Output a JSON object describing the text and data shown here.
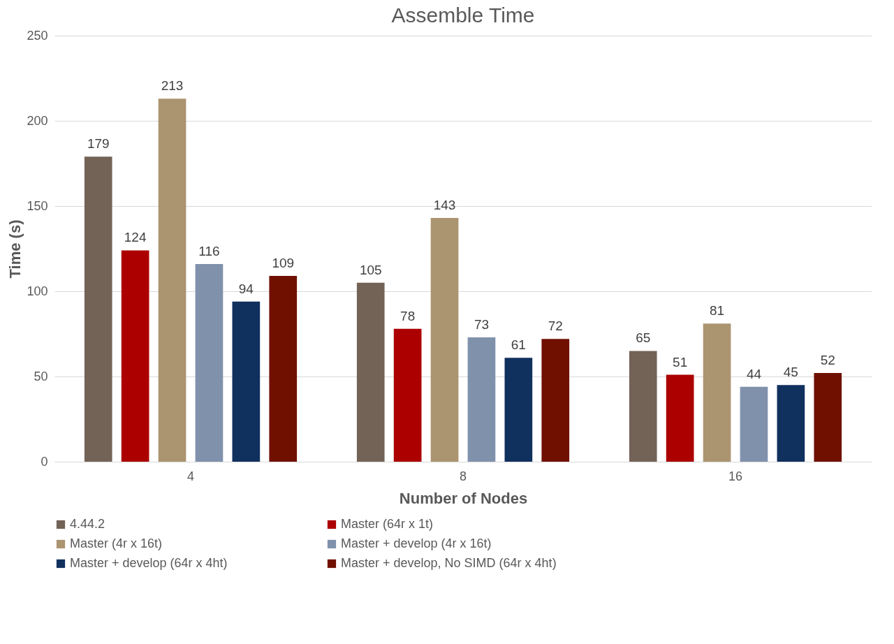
{
  "chart_data": {
    "type": "bar",
    "title": "Assemble Time",
    "xlabel": "Number of Nodes",
    "ylabel": "Time (s)",
    "categories": [
      "4",
      "8",
      "16"
    ],
    "series": [
      {
        "name": "4.44.2",
        "color": "#736357",
        "values": [
          179,
          105,
          65
        ]
      },
      {
        "name": "Master (64r x 1t)",
        "color": "#ac0000",
        "values": [
          124,
          78,
          51
        ]
      },
      {
        "name": "Master (4r x 16t)",
        "color": "#ab9470",
        "values": [
          213,
          143,
          81
        ]
      },
      {
        "name": "Master + develop (4r x 16t)",
        "color": "#8091ac",
        "values": [
          116,
          73,
          44
        ]
      },
      {
        "name": "Master + develop (64r x 4ht)",
        "color": "#10305e",
        "values": [
          94,
          61,
          45
        ]
      },
      {
        "name": "Master + develop, No SIMD (64r x 4ht)",
        "color": "#701000",
        "values": [
          109,
          72,
          52
        ]
      }
    ],
    "ylim": [
      0,
      250
    ],
    "yticks": [
      0,
      50,
      100,
      150,
      200,
      250
    ],
    "grid": "y",
    "legend": "bottom",
    "data_labels": true
  }
}
